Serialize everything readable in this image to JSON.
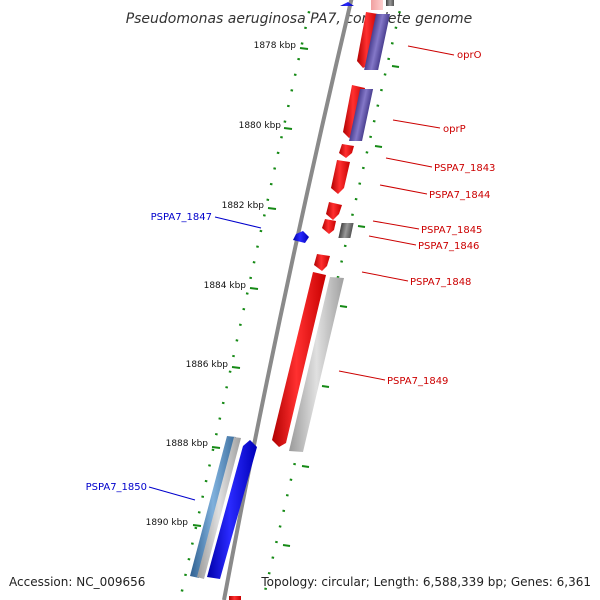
{
  "title": "Pseudomonas aeruginosa PA7, complete genome",
  "footer": {
    "accession": "Accession: NC_009656",
    "topology": "Topology: circular; Length: 6,588,339 bp; Genes: 6,361"
  },
  "colors": {
    "forward_gene": "#ee1c1c",
    "reverse_gene": "#1a1aee",
    "cog_purple": "#6a5fb0",
    "cog_grey": "#b8b8b8",
    "cog_dark": "#6c6c6c",
    "cog_steelblue": "#4f86b8",
    "backbone": "#8a8a8a",
    "ticks": "#168a16",
    "label_red": "#cc0000",
    "label_blue": "#0000cc"
  },
  "ticks": [
    "1878 kbp",
    "1880 kbp",
    "1882 kbp",
    "1884 kbp",
    "1886 kbp",
    "1888 kbp",
    "1890 kbp"
  ],
  "genes": [
    {
      "name": "oprO",
      "strand": "forward"
    },
    {
      "name": "oprP",
      "strand": "forward"
    },
    {
      "name": "PSPA7_1843",
      "strand": "forward"
    },
    {
      "name": "PSPA7_1844",
      "strand": "forward"
    },
    {
      "name": "PSPA7_1845",
      "strand": "forward"
    },
    {
      "name": "PSPA7_1846",
      "strand": "forward"
    },
    {
      "name": "PSPA7_1847",
      "strand": "reverse"
    },
    {
      "name": "PSPA7_1848",
      "strand": "forward"
    },
    {
      "name": "PSPA7_1849",
      "strand": "forward"
    },
    {
      "name": "PSPA7_1850",
      "strand": "reverse"
    }
  ]
}
